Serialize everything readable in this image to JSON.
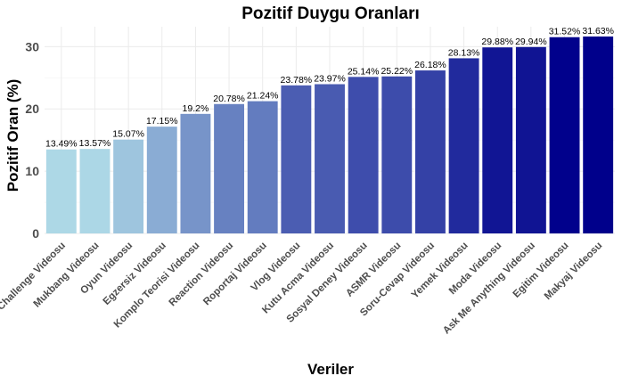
{
  "chart_data": {
    "type": "bar",
    "title": "Pozitif Duygu Oranları",
    "xlabel": "Veriler",
    "ylabel": "Pozitif Oran (%)",
    "ylim": [
      0,
      33.2
    ],
    "yticks": [
      0,
      10,
      20,
      30
    ],
    "grid": true,
    "legend": "none",
    "categories": [
      "Challenge Videosu",
      "Mukbang Videosu",
      "Oyun Videosu",
      "Egzersiz Videosu",
      "Komplo Teorisi Videosu",
      "Reaction Videosu",
      "Roportaj Videosu",
      "Vlog Videosu",
      "Kutu Acma Videosu",
      "Sosyal Deney Videosu",
      "ASMR Videosu",
      "Soru-Cevap Videosu",
      "Yemek Videosu",
      "Moda Videosu",
      "Ask Me Anything Videosu",
      "Egitim Videosu",
      "Makyaj Videosu"
    ],
    "values": [
      13.49,
      13.57,
      15.07,
      17.15,
      19.2,
      20.78,
      21.24,
      23.78,
      23.97,
      25.14,
      25.22,
      26.18,
      28.13,
      29.88,
      29.94,
      31.52,
      31.63
    ],
    "value_labels": [
      "13.49%",
      "13.57%",
      "15.07%",
      "17.15%",
      "19.2%",
      "20.78%",
      "21.24%",
      "23.78%",
      "23.97%",
      "25.14%",
      "25.22%",
      "26.18%",
      "28.13%",
      "29.88%",
      "29.94%",
      "31.52%",
      "31.63%"
    ],
    "colors": {
      "low": "#add8e6",
      "high": "#00008b"
    }
  }
}
